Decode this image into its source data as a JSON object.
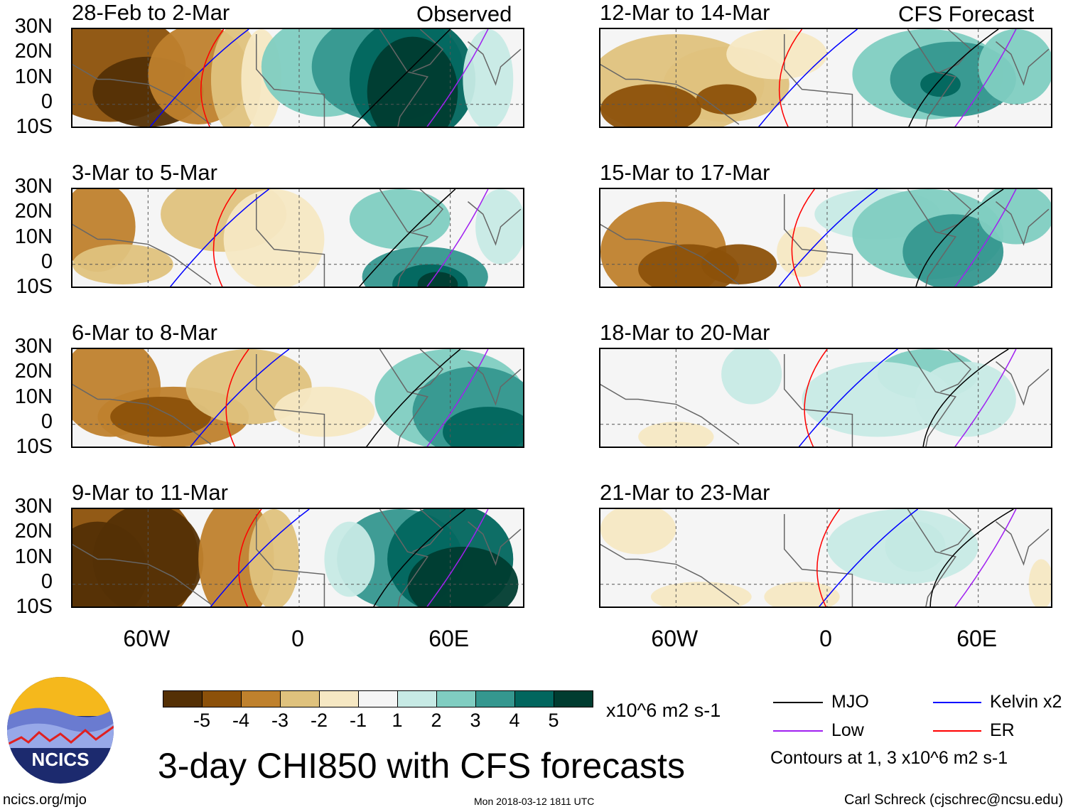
{
  "title": "3-day CHI850 with CFS forecasts",
  "units": "x10^6 m2 s-1",
  "logo_text": "NCICS",
  "url": "ncics.org/mjo",
  "timestamp": "Mon 2018-03-12 1811 UTC",
  "author": "Carl Schreck (cjschrec@ncsu.edu)",
  "headers": {
    "left": "Observed",
    "right": "CFS Forecast"
  },
  "legend": {
    "items": [
      {
        "label": "MJO",
        "color": "#000000"
      },
      {
        "label": "Kelvin x2",
        "color": "#0000ff"
      },
      {
        "label": "Low",
        "color": "#a020f0"
      },
      {
        "label": "ER",
        "color": "#ff0000"
      }
    ],
    "note": "Contours at 1, 3 x10^6 m2 s-1"
  },
  "chart_data": {
    "type": "heatmap",
    "title": "3-day CHI850 with CFS forecasts",
    "lat_ticks": [
      "30N",
      "20N",
      "10N",
      "0",
      "10S"
    ],
    "lon_ticks": [
      "60W",
      "0",
      "60E"
    ],
    "xlim": [
      -90,
      90
    ],
    "ylim": [
      -10,
      30
    ],
    "colorbar": {
      "levels": [
        "-5",
        "-4",
        "-3",
        "-2",
        "-1",
        "1",
        "2",
        "3",
        "4",
        "5"
      ],
      "colors": [
        "#543005",
        "#8c510a",
        "#bf812d",
        "#dfc27d",
        "#f6e8c3",
        "#f5f5f5",
        "#c7eae5",
        "#80cdc1",
        "#35978f",
        "#01665e",
        "#003c30"
      ]
    },
    "panels": [
      {
        "label": "28-Feb to 2-Mar",
        "source": "Observed"
      },
      {
        "label": "3-Mar to 5-Mar",
        "source": "Observed"
      },
      {
        "label": "6-Mar to 8-Mar",
        "source": "Observed"
      },
      {
        "label": "9-Mar to 11-Mar",
        "source": "Observed"
      },
      {
        "label": "12-Mar to 14-Mar",
        "source": "CFS Forecast"
      },
      {
        "label": "15-Mar to 17-Mar",
        "source": "CFS Forecast"
      },
      {
        "label": "18-Mar to 20-Mar",
        "source": "CFS Forecast"
      },
      {
        "label": "21-Mar to 23-Mar",
        "source": "CFS Forecast"
      }
    ]
  }
}
